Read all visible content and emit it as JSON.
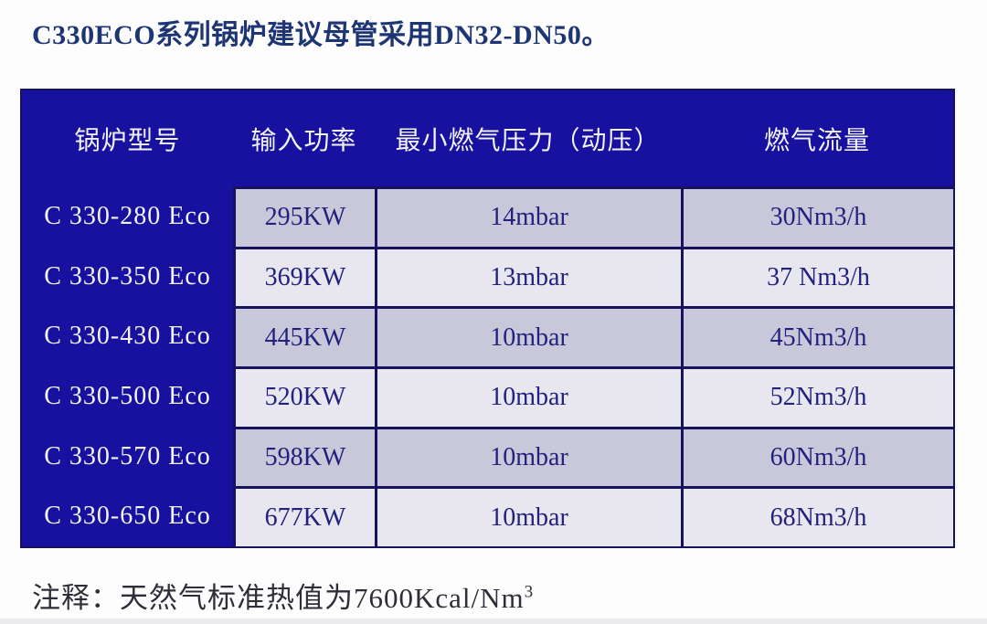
{
  "page": {
    "title": "C330ECO系列锅炉建议母管采用DN32-DN50。",
    "note_text": "注释：天然气标准热值为7600Kcal/Nm",
    "note_superscript": "3"
  },
  "table": {
    "columns": {
      "model": "锅炉型号",
      "power": "输入功率",
      "pressure": "最小燃气压力（动压）",
      "flow": "燃气流量"
    },
    "rows": [
      {
        "model": "C 330-280 Eco",
        "power": "295KW",
        "pressure": "14mbar",
        "flow": "30Nm3/h"
      },
      {
        "model": "C 330-350 Eco",
        "power": "369KW",
        "pressure": "13mbar",
        "flow": "37 Nm3/h"
      },
      {
        "model": "C 330-430 Eco",
        "power": "445KW",
        "pressure": "10mbar",
        "flow": "45Nm3/h"
      },
      {
        "model": "C 330-500 Eco",
        "power": "520KW",
        "pressure": "10mbar",
        "flow": "52Nm3/h"
      },
      {
        "model": "C 330-570 Eco",
        "power": "598KW",
        "pressure": "10mbar",
        "flow": "60Nm3/h"
      },
      {
        "model": "C 330-650 Eco",
        "power": "677KW",
        "pressure": "10mbar",
        "flow": "68Nm3/h"
      }
    ]
  },
  "colors": {
    "table_blue": "#18109e",
    "border_navy": "#151260",
    "row_odd": "#c9c8da",
    "row_even": "#e8e7f0",
    "data_text": "#22227e",
    "title_text": "#1e3574",
    "note_text": "#2e2e38"
  }
}
